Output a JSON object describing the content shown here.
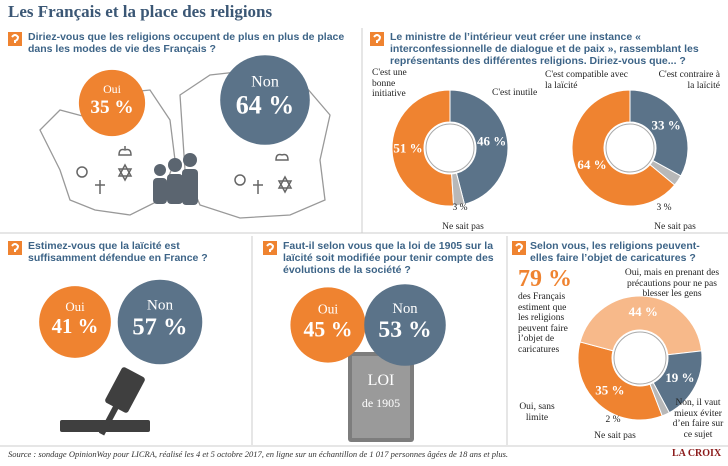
{
  "title": "Les Français et la place des religions",
  "source": "Source : sondage OpinionWay pour LICRA, réalisé les 4 et 5 octobre 2017, en ligne sur un échantillon de 1 017 personnes âgées de 18 ans et plus.",
  "logo": "LA CROIX",
  "chart_data": [
    {
      "type": "circles",
      "question": "Diriez-vous que les religions occupent de plus en plus de place dans les modes de vie des Français ?",
      "categories": [
        "Oui",
        "Non"
      ],
      "values": [
        35,
        64
      ],
      "value_labels": [
        "35 %",
        "64 %"
      ],
      "colors": [
        "#ef8330",
        "#5b7389"
      ]
    },
    {
      "type": "donut",
      "question": "Le ministre de l’intérieur veut créer une instance « interconfessionnelle de dialogue et de paix », rassemblant les représentants des différentes religions. Diriez-vous que... ?",
      "categories": [
        "C'est une bonne initiative",
        "C'est inutile",
        "Ne sait pas"
      ],
      "values": [
        51,
        46,
        3
      ],
      "value_labels": [
        "51 %",
        "46 %",
        "3 %"
      ],
      "colors": [
        "#ef8330",
        "#5b7389",
        "#b8b8b8"
      ]
    },
    {
      "type": "donut",
      "categories": [
        "C'est compatible avec la laïcité",
        "C'est contraire à la laïcité",
        "Ne sait pas"
      ],
      "values": [
        64,
        33,
        3
      ],
      "value_labels": [
        "64 %",
        "33 %",
        "3 %"
      ],
      "colors": [
        "#ef8330",
        "#5b7389",
        "#b8b8b8"
      ]
    },
    {
      "type": "circles",
      "question": "Estimez-vous que la laïcité est suffisamment défendue en France ?",
      "categories": [
        "Oui",
        "Non"
      ],
      "values": [
        41,
        57
      ],
      "value_labels": [
        "41 %",
        "57 %"
      ],
      "colors": [
        "#ef8330",
        "#5b7389"
      ]
    },
    {
      "type": "circles",
      "question": "Faut-il selon vous que la loi de 1905 sur la laïcité soit modifiée pour tenir compte des évolutions de la société ?",
      "categories": [
        "Oui",
        "Non"
      ],
      "values": [
        45,
        53
      ],
      "value_labels": [
        "45 %",
        "53 %"
      ],
      "colors": [
        "#ef8330",
        "#5b7389"
      ],
      "annotations": [
        "LOI",
        "de 1905"
      ]
    },
    {
      "type": "donut",
      "question": "Selon vous, les religions peuvent-elles faire l’objet de caricatures ?",
      "highlight": {
        "value": 79,
        "label": "79 %",
        "text": "des Français estiment que les religions peuvent faire l’objet de caricatures"
      },
      "categories": [
        "Oui, sans limite",
        "Oui, mais en prenant des précautions pour ne pas blesser les gens",
        "Non, il vaut mieux éviter d’en faire sur ce sujet",
        "Ne sait pas"
      ],
      "values": [
        35,
        44,
        19,
        2
      ],
      "value_labels": [
        "35 %",
        "44 %",
        "19 %",
        "2 %"
      ],
      "colors": [
        "#ef8330",
        "#f7b98a",
        "#5b7389",
        "#b8b8b8"
      ]
    }
  ]
}
